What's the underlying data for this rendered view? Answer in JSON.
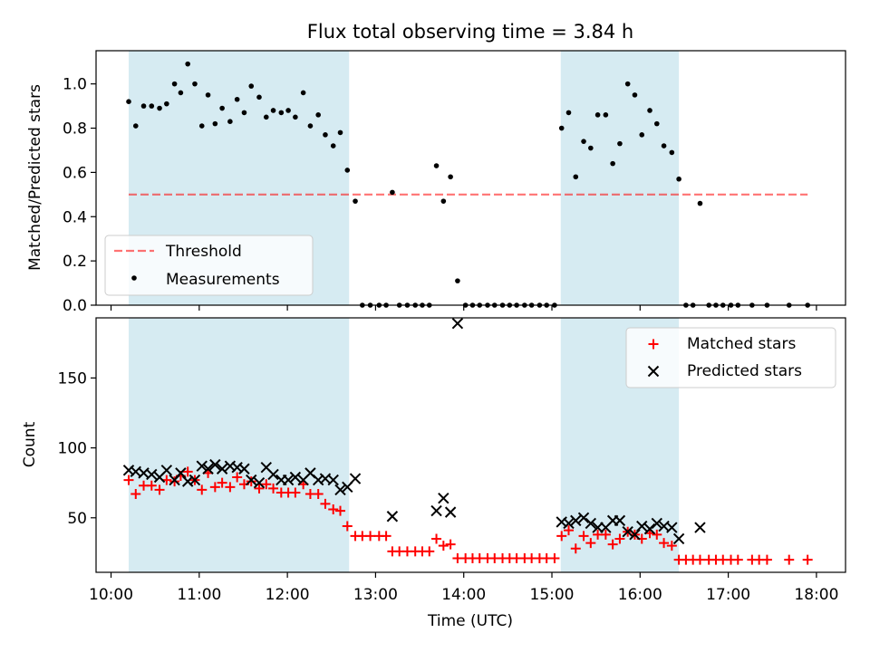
{
  "chart_data": {
    "title": "Flux total observing time = 3.84 h",
    "xlabel": "Time (UTC)",
    "xticks": [
      "10:00",
      "11:00",
      "12:00",
      "13:00",
      "14:00",
      "15:00",
      "16:00",
      "17:00",
      "18:00"
    ],
    "xlim_hours": [
      9.83,
      18.33
    ],
    "shaded_intervals_hours": [
      [
        10.2,
        12.7
      ],
      [
        15.1,
        16.44
      ]
    ],
    "shade_color": "#add8e6",
    "panels": [
      {
        "type": "scatter",
        "ylabel": "Matched/Predicted stars",
        "ylim": [
          0,
          1.15
        ],
        "yticks": [
          "0.0",
          "0.2",
          "0.4",
          "0.6",
          "0.8",
          "1.0"
        ],
        "legend_position": "lower-left",
        "threshold": {
          "name": "Threshold",
          "value": 0.5,
          "x_range_hours": [
            10.2,
            17.9
          ],
          "color": "#ff0000"
        },
        "series": [
          {
            "name": "Measurements",
            "color": "#000000",
            "points": [
              [
                10.2,
                0.92
              ],
              [
                10.28,
                0.81
              ],
              [
                10.37,
                0.9
              ],
              [
                10.46,
                0.9
              ],
              [
                10.55,
                0.89
              ],
              [
                10.63,
                0.91
              ],
              [
                10.72,
                1.0
              ],
              [
                10.79,
                0.96
              ],
              [
                10.87,
                1.09
              ],
              [
                10.95,
                1.0
              ],
              [
                11.03,
                0.81
              ],
              [
                11.1,
                0.95
              ],
              [
                11.18,
                0.82
              ],
              [
                11.26,
                0.89
              ],
              [
                11.35,
                0.83
              ],
              [
                11.43,
                0.93
              ],
              [
                11.51,
                0.87
              ],
              [
                11.59,
                0.99
              ],
              [
                11.68,
                0.94
              ],
              [
                11.76,
                0.85
              ],
              [
                11.84,
                0.88
              ],
              [
                11.93,
                0.87
              ],
              [
                12.01,
                0.88
              ],
              [
                12.09,
                0.85
              ],
              [
                12.18,
                0.96
              ],
              [
                12.26,
                0.81
              ],
              [
                12.35,
                0.86
              ],
              [
                12.43,
                0.77
              ],
              [
                12.52,
                0.72
              ],
              [
                12.6,
                0.78
              ],
              [
                12.68,
                0.61
              ],
              [
                12.77,
                0.47
              ],
              [
                12.85,
                0.0
              ],
              [
                12.94,
                0.0
              ],
              [
                13.04,
                0.0
              ],
              [
                13.12,
                0.0
              ],
              [
                13.19,
                0.51
              ],
              [
                13.27,
                0.0
              ],
              [
                13.36,
                0.0
              ],
              [
                13.45,
                0.0
              ],
              [
                13.53,
                0.0
              ],
              [
                13.61,
                0.0
              ],
              [
                13.69,
                0.63
              ],
              [
                13.77,
                0.47
              ],
              [
                13.85,
                0.58
              ],
              [
                13.93,
                0.11
              ],
              [
                14.02,
                0.0
              ],
              [
                14.1,
                0.0
              ],
              [
                14.18,
                0.0
              ],
              [
                14.27,
                0.0
              ],
              [
                14.35,
                0.0
              ],
              [
                14.44,
                0.0
              ],
              [
                14.52,
                0.0
              ],
              [
                14.6,
                0.0
              ],
              [
                14.69,
                0.0
              ],
              [
                14.77,
                0.0
              ],
              [
                14.86,
                0.0
              ],
              [
                14.94,
                0.0
              ],
              [
                15.03,
                0.0
              ],
              [
                15.11,
                0.8
              ],
              [
                15.19,
                0.87
              ],
              [
                15.27,
                0.58
              ],
              [
                15.36,
                0.74
              ],
              [
                15.44,
                0.71
              ],
              [
                15.52,
                0.86
              ],
              [
                15.61,
                0.86
              ],
              [
                15.69,
                0.64
              ],
              [
                15.77,
                0.73
              ],
              [
                15.86,
                1.0
              ],
              [
                15.94,
                0.95
              ],
              [
                16.02,
                0.77
              ],
              [
                16.11,
                0.88
              ],
              [
                16.19,
                0.82
              ],
              [
                16.27,
                0.72
              ],
              [
                16.36,
                0.69
              ],
              [
                16.44,
                0.57
              ],
              [
                16.52,
                0.0
              ],
              [
                16.6,
                0.0
              ],
              [
                16.68,
                0.46
              ],
              [
                16.78,
                0.0
              ],
              [
                16.86,
                0.0
              ],
              [
                16.94,
                0.0
              ],
              [
                17.03,
                0.0
              ],
              [
                17.11,
                0.0
              ],
              [
                17.27,
                0.0
              ],
              [
                17.44,
                0.0
              ],
              [
                17.69,
                0.0
              ],
              [
                17.9,
                0.0
              ]
            ]
          }
        ]
      },
      {
        "type": "scatter",
        "ylabel": "Count",
        "ylim": [
          11,
          193
        ],
        "yticks": [
          "50",
          "100",
          "150"
        ],
        "legend_position": "upper-right",
        "series": [
          {
            "name": "Matched stars",
            "marker": "+",
            "color": "#ff0000",
            "points": [
              [
                10.2,
                77
              ],
              [
                10.28,
                67
              ],
              [
                10.37,
                73
              ],
              [
                10.46,
                73
              ],
              [
                10.55,
                70
              ],
              [
                10.63,
                77
              ],
              [
                10.72,
                76
              ],
              [
                10.79,
                80
              ],
              [
                10.87,
                83
              ],
              [
                10.95,
                77
              ],
              [
                11.03,
                70
              ],
              [
                11.1,
                82
              ],
              [
                11.18,
                72
              ],
              [
                11.26,
                75
              ],
              [
                11.35,
                72
              ],
              [
                11.43,
                79
              ],
              [
                11.51,
                74
              ],
              [
                11.59,
                76
              ],
              [
                11.68,
                71
              ],
              [
                11.76,
                74
              ],
              [
                11.84,
                71
              ],
              [
                11.93,
                68
              ],
              [
                12.01,
                68
              ],
              [
                12.09,
                68
              ],
              [
                12.18,
                74
              ],
              [
                12.26,
                67
              ],
              [
                12.35,
                67
              ],
              [
                12.43,
                60
              ],
              [
                12.52,
                56
              ],
              [
                12.6,
                55
              ],
              [
                12.68,
                44
              ],
              [
                12.77,
                37
              ],
              [
                12.85,
                37
              ],
              [
                12.94,
                37
              ],
              [
                13.04,
                37
              ],
              [
                13.12,
                37
              ],
              [
                13.19,
                26
              ],
              [
                13.27,
                26
              ],
              [
                13.36,
                26
              ],
              [
                13.45,
                26
              ],
              [
                13.53,
                26
              ],
              [
                13.61,
                26
              ],
              [
                13.69,
                35
              ],
              [
                13.77,
                30
              ],
              [
                13.85,
                31
              ],
              [
                13.93,
                21
              ],
              [
                14.02,
                21
              ],
              [
                14.1,
                21
              ],
              [
                14.18,
                21
              ],
              [
                14.27,
                21
              ],
              [
                14.35,
                21
              ],
              [
                14.44,
                21
              ],
              [
                14.52,
                21
              ],
              [
                14.6,
                21
              ],
              [
                14.69,
                21
              ],
              [
                14.77,
                21
              ],
              [
                14.86,
                21
              ],
              [
                14.94,
                21
              ],
              [
                15.03,
                21
              ],
              [
                15.11,
                37
              ],
              [
                15.19,
                41
              ],
              [
                15.27,
                28
              ],
              [
                15.36,
                37
              ],
              [
                15.44,
                32
              ],
              [
                15.52,
                38
              ],
              [
                15.61,
                38
              ],
              [
                15.69,
                31
              ],
              [
                15.77,
                35
              ],
              [
                15.86,
                40
              ],
              [
                15.94,
                38
              ],
              [
                16.02,
                35
              ],
              [
                16.11,
                39
              ],
              [
                16.19,
                38
              ],
              [
                16.27,
                32
              ],
              [
                16.36,
                30
              ],
              [
                16.44,
                20
              ],
              [
                16.52,
                20
              ],
              [
                16.6,
                20
              ],
              [
                16.68,
                20
              ],
              [
                16.78,
                20
              ],
              [
                16.86,
                20
              ],
              [
                16.94,
                20
              ],
              [
                17.03,
                20
              ],
              [
                17.11,
                20
              ],
              [
                17.27,
                20
              ],
              [
                17.35,
                20
              ],
              [
                17.44,
                20
              ],
              [
                17.69,
                20
              ],
              [
                17.9,
                20
              ]
            ]
          },
          {
            "name": "Predicted stars",
            "marker": "x",
            "color": "#000000",
            "points": [
              [
                10.2,
                84
              ],
              [
                10.28,
                83
              ],
              [
                10.37,
                82
              ],
              [
                10.46,
                81
              ],
              [
                10.55,
                79
              ],
              [
                10.63,
                84
              ],
              [
                10.72,
                77
              ],
              [
                10.79,
                82
              ],
              [
                10.87,
                76
              ],
              [
                10.95,
                77
              ],
              [
                11.03,
                87
              ],
              [
                11.1,
                85
              ],
              [
                11.18,
                88
              ],
              [
                11.26,
                85
              ],
              [
                11.35,
                87
              ],
              [
                11.43,
                86
              ],
              [
                11.51,
                85
              ],
              [
                11.59,
                77
              ],
              [
                11.68,
                75
              ],
              [
                11.76,
                86
              ],
              [
                11.84,
                81
              ],
              [
                11.93,
                77
              ],
              [
                12.01,
                77
              ],
              [
                12.09,
                79
              ],
              [
                12.18,
                77
              ],
              [
                12.26,
                82
              ],
              [
                12.35,
                77
              ],
              [
                12.43,
                78
              ],
              [
                12.52,
                77
              ],
              [
                12.6,
                70
              ],
              [
                12.68,
                72
              ],
              [
                12.77,
                78
              ],
              [
                13.19,
                51
              ],
              [
                13.69,
                55
              ],
              [
                13.77,
                64
              ],
              [
                13.85,
                54
              ],
              [
                13.93,
                189
              ],
              [
                15.11,
                47
              ],
              [
                15.19,
                46
              ],
              [
                15.27,
                48
              ],
              [
                15.36,
                50
              ],
              [
                15.44,
                46
              ],
              [
                15.52,
                43
              ],
              [
                15.61,
                43
              ],
              [
                15.69,
                48
              ],
              [
                15.77,
                48
              ],
              [
                15.86,
                40
              ],
              [
                15.94,
                38
              ],
              [
                16.02,
                44
              ],
              [
                16.11,
                42
              ],
              [
                16.19,
                46
              ],
              [
                16.27,
                44
              ],
              [
                16.36,
                43
              ],
              [
                16.44,
                35
              ],
              [
                16.68,
                43
              ]
            ]
          }
        ]
      }
    ]
  }
}
